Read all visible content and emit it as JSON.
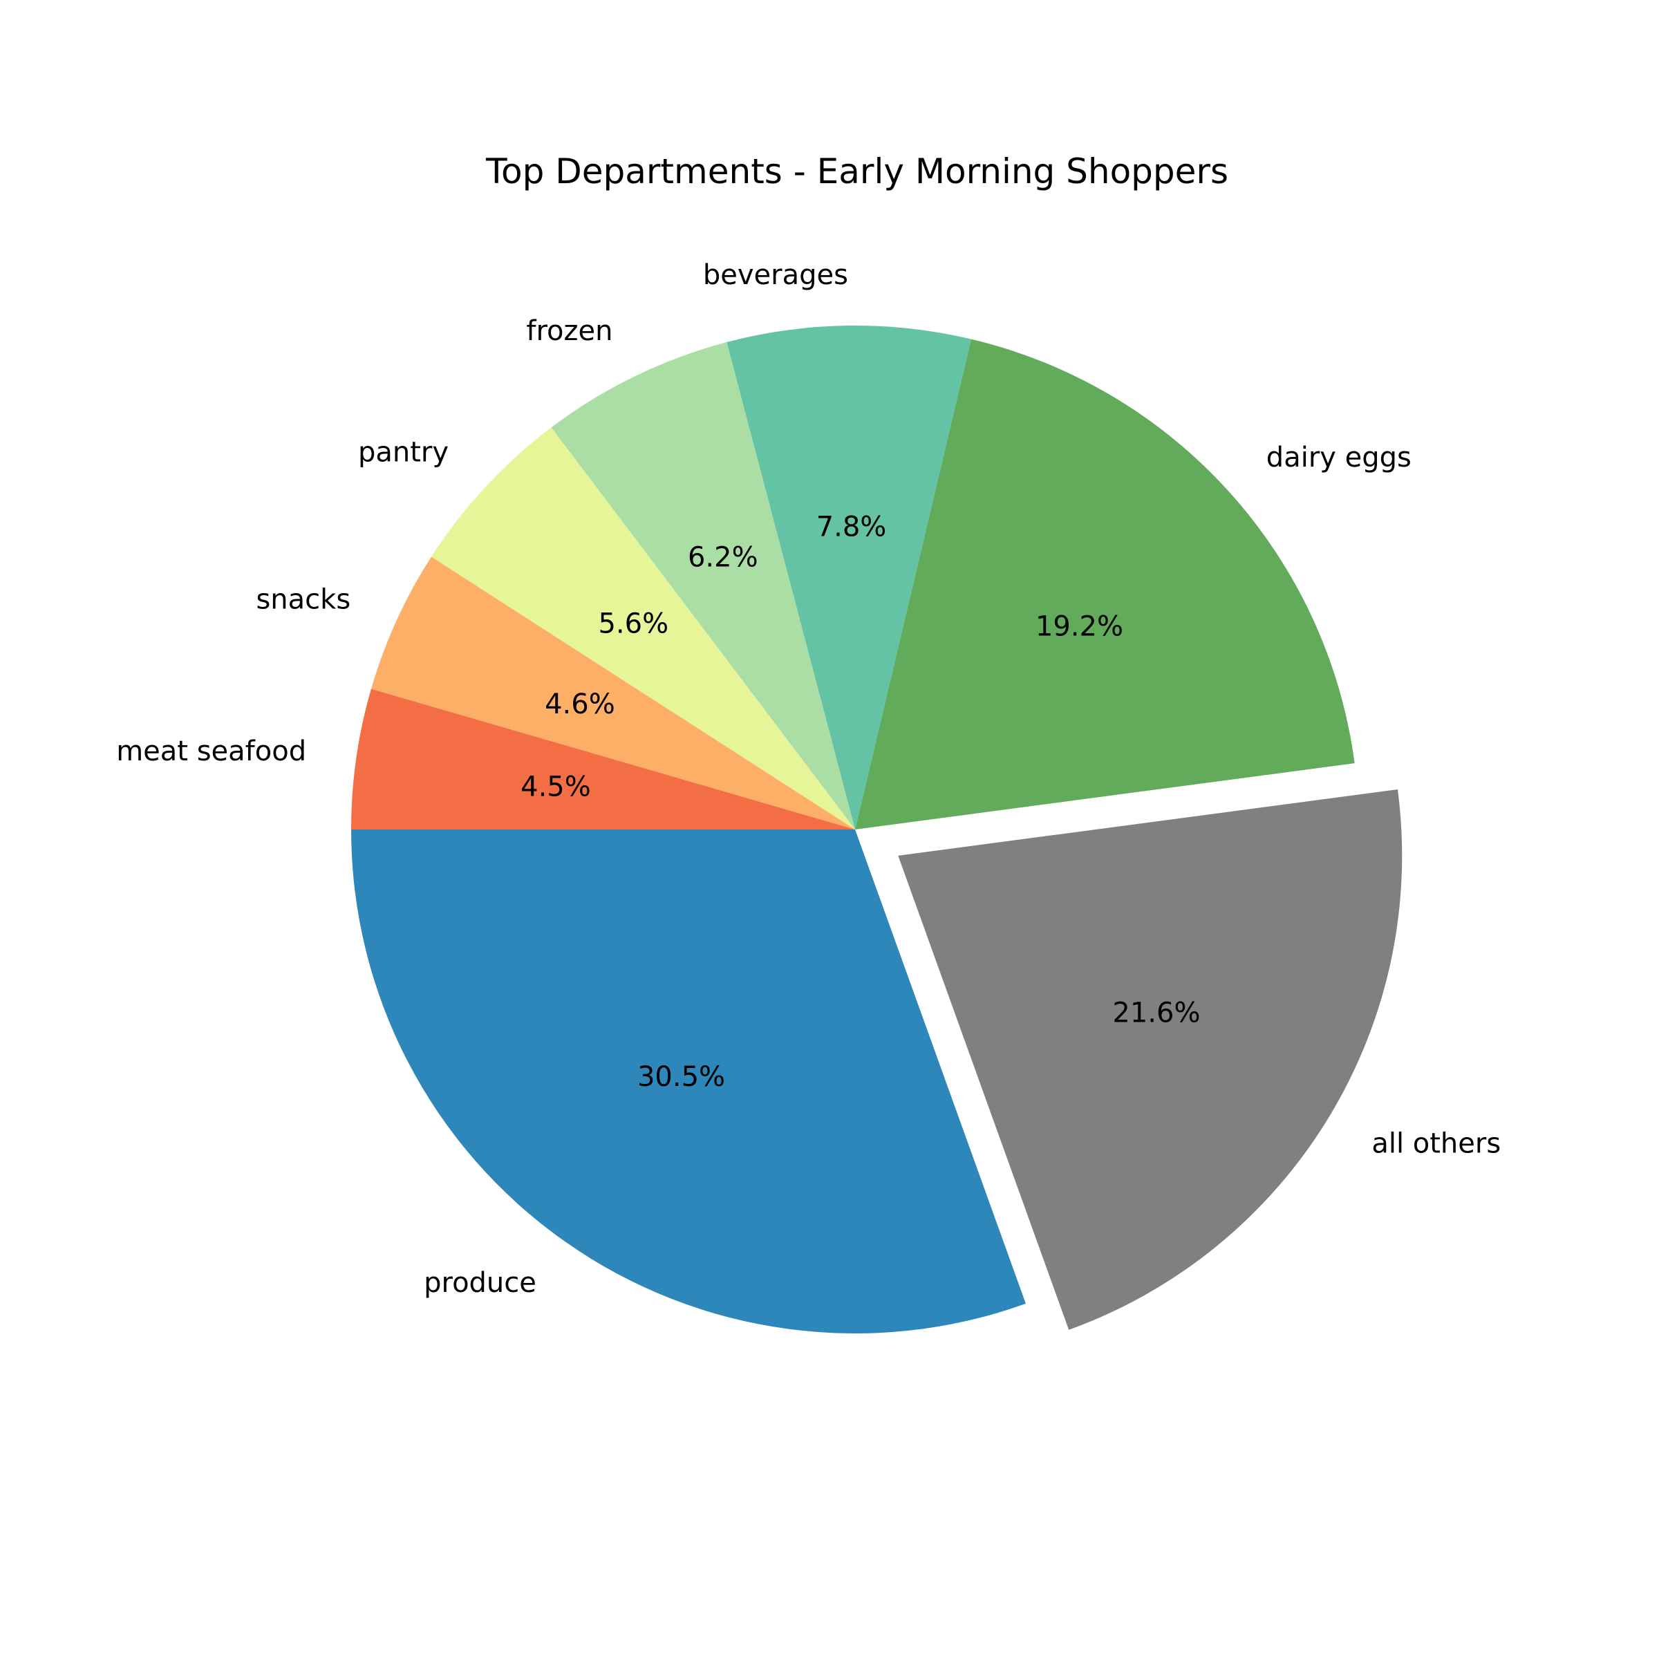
{
  "chart_data": {
    "type": "pie",
    "title": "Top Departments - Early Morning Shoppers",
    "start_angle_deg": 180,
    "direction": "counterclockwise",
    "slices": [
      {
        "label": "produce",
        "value": 30.5,
        "pct_label": "30.5%",
        "color": "#2e87ba",
        "explode": false
      },
      {
        "label": "all others",
        "value": 21.6,
        "pct_label": "21.6%",
        "color": "#808080",
        "explode": true
      },
      {
        "label": "dairy eggs",
        "value": 19.2,
        "pct_label": "19.2%",
        "color": "#62ab5a",
        "explode": false
      },
      {
        "label": "beverages",
        "value": 7.8,
        "pct_label": "7.8%",
        "color": "#64c2a5",
        "explode": false
      },
      {
        "label": "frozen",
        "value": 6.2,
        "pct_label": "6.2%",
        "color": "#abdea5",
        "explode": false
      },
      {
        "label": "pantry",
        "value": 5.6,
        "pct_label": "5.6%",
        "color": "#e5f597",
        "explode": false
      },
      {
        "label": "snacks",
        "value": 4.6,
        "pct_label": "4.6%",
        "color": "#fdae67",
        "explode": false
      },
      {
        "label": "meat seafood",
        "value": 4.5,
        "pct_label": "4.5%",
        "color": "#f46e45",
        "explode": false
      }
    ]
  }
}
